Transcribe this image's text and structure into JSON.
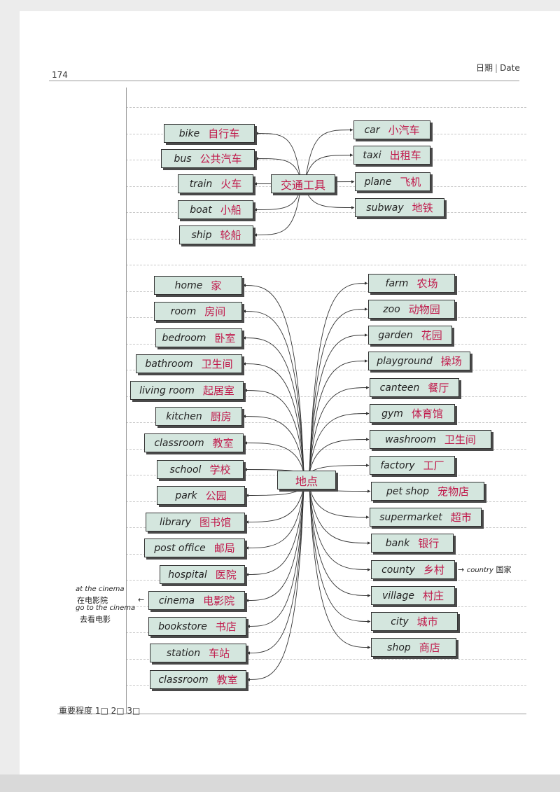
{
  "page_number": "174",
  "date_label": {
    "zh": "日期",
    "en": "Date"
  },
  "importance_label": "重要程度 1□ 2□ 3□",
  "transport": {
    "hub": "交通工具",
    "left": [
      {
        "en": "bike",
        "zh": "自行车"
      },
      {
        "en": "bus",
        "zh": "公共汽车"
      },
      {
        "en": "train",
        "zh": "火车"
      },
      {
        "en": "boat",
        "zh": "小船"
      },
      {
        "en": "ship",
        "zh": "轮船"
      }
    ],
    "right": [
      {
        "en": "car",
        "zh": "小汽车"
      },
      {
        "en": "taxi",
        "zh": "出租车"
      },
      {
        "en": "plane",
        "zh": "飞机"
      },
      {
        "en": "subway",
        "zh": "地铁"
      }
    ]
  },
  "places": {
    "hub": "地点",
    "left": [
      {
        "en": "home",
        "zh": "家"
      },
      {
        "en": "room",
        "zh": "房间"
      },
      {
        "en": "bedroom",
        "zh": "卧室"
      },
      {
        "en": "bathroom",
        "zh": "卫生间"
      },
      {
        "en": "living room",
        "zh": "起居室"
      },
      {
        "en": "kitchen",
        "zh": "厨房"
      },
      {
        "en": "classroom",
        "zh": "教室"
      },
      {
        "en": "school",
        "zh": "学校"
      },
      {
        "en": "park",
        "zh": "公园"
      },
      {
        "en": "library",
        "zh": "图书馆"
      },
      {
        "en": "post office",
        "zh": "邮局"
      },
      {
        "en": "hospital",
        "zh": "医院"
      },
      {
        "en": "cinema",
        "zh": "电影院"
      },
      {
        "en": "bookstore",
        "zh": "书店"
      },
      {
        "en": "station",
        "zh": "车站"
      },
      {
        "en": "classroom",
        "zh": "教室"
      }
    ],
    "right": [
      {
        "en": "farm",
        "zh": "农场"
      },
      {
        "en": "zoo",
        "zh": "动物园"
      },
      {
        "en": "garden",
        "zh": "花园"
      },
      {
        "en": "playground",
        "zh": "操场"
      },
      {
        "en": "canteen",
        "zh": "餐厅"
      },
      {
        "en": "gym",
        "zh": "体育馆"
      },
      {
        "en": "washroom",
        "zh": "卫生间"
      },
      {
        "en": "factory",
        "zh": "工厂"
      },
      {
        "en": "pet shop",
        "zh": "宠物店"
      },
      {
        "en": "supermarket",
        "zh": "超市"
      },
      {
        "en": "bank",
        "zh": "银行"
      },
      {
        "en": "county",
        "zh": "乡村"
      },
      {
        "en": "village",
        "zh": "村庄"
      },
      {
        "en": "city",
        "zh": "城市"
      },
      {
        "en": "shop",
        "zh": "商店"
      }
    ]
  },
  "notes": {
    "cinema": {
      "line1": "at the cinema",
      "line2": "在电影院",
      "line3": "go to the cinema",
      "line4": "去看电影"
    },
    "county": {
      "en": "country",
      "zh": "国家"
    }
  }
}
